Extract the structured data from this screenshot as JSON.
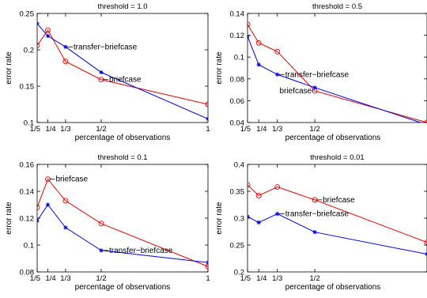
{
  "chart_data": [
    {
      "type": "line",
      "title": "threshold = 1.0",
      "xlabel": "percentage of observations",
      "ylabel": "error rate",
      "x": [
        0.2,
        0.25,
        0.333,
        0.5,
        1.0
      ],
      "xticks": [
        0.2,
        0.25,
        0.333,
        0.5,
        1.0
      ],
      "xtick_labels": [
        "1/5",
        "1/4",
        "1/3",
        "1/2",
        "1"
      ],
      "xlim": [
        0.2,
        1.0
      ],
      "ylim": [
        0.1,
        0.25
      ],
      "yticks": [
        0.1,
        0.15,
        0.2,
        0.25
      ],
      "ytick_labels": [
        "0.1",
        "0.15",
        "0.2",
        "0.25"
      ],
      "series": [
        {
          "name": "briefcase",
          "color": "#e60000",
          "marker": "circle",
          "values": [
            0.206,
            0.227,
            0.184,
            0.159,
            0.125
          ]
        },
        {
          "name": "transfer−briefcase",
          "color": "#0000e6",
          "marker": "star",
          "values": [
            0.236,
            0.219,
            0.204,
            0.169,
            0.105
          ]
        }
      ],
      "annotations": [
        {
          "text": "transfer−briefcase",
          "x": 0.333,
          "y": 0.204
        },
        {
          "text": "briefcase",
          "x": 0.5,
          "y": 0.159
        }
      ]
    },
    {
      "type": "line",
      "title": "threshold = 0.5",
      "xlabel": "percentage of observations",
      "ylabel": "error rate",
      "x": [
        0.2,
        0.25,
        0.333,
        0.5,
        1.0
      ],
      "xticks": [
        0.2,
        0.25,
        0.333,
        0.5
      ],
      "xtick_labels": [
        "1/5",
        "1/4",
        "1/3",
        "1/2"
      ],
      "xlim": [
        0.2,
        1.0
      ],
      "ylim": [
        0.04,
        0.14
      ],
      "yticks": [
        0.04,
        0.06,
        0.08,
        0.1,
        0.12,
        0.14
      ],
      "ytick_labels": [
        "0.04",
        "0.06",
        "0.08",
        "0.1",
        "0.12",
        "0.14"
      ],
      "series": [
        {
          "name": "briefcase",
          "color": "#e60000",
          "marker": "circle",
          "values": [
            0.13,
            0.113,
            0.105,
            0.069,
            0.04
          ]
        },
        {
          "name": "transfer−briefcase",
          "color": "#0000e6",
          "marker": "star",
          "values": [
            0.119,
            0.093,
            0.084,
            0.072,
            0.038
          ]
        }
      ],
      "annotations": [
        {
          "text": "transfer−briefcase",
          "x": 0.333,
          "y": 0.084
        },
        {
          "text": "briefcase",
          "x": 0.5,
          "y": 0.069
        }
      ]
    },
    {
      "type": "line",
      "title": "threshold = 0.1",
      "xlabel": "percentage of observations",
      "ylabel": "error rate",
      "x": [
        0.2,
        0.25,
        0.333,
        0.5,
        1.0
      ],
      "xticks": [
        0.2,
        0.25,
        0.333,
        0.5,
        1.0
      ],
      "xtick_labels": [
        "1/5",
        "1/4",
        "1/3",
        "1/2",
        "1"
      ],
      "xlim": [
        0.2,
        1.0
      ],
      "ylim": [
        0.08,
        0.16
      ],
      "yticks": [
        0.08,
        0.1,
        0.12,
        0.14,
        0.16
      ],
      "ytick_labels": [
        "0.08",
        "0.1",
        "0.12",
        "0.14",
        "0.16"
      ],
      "series": [
        {
          "name": "briefcase",
          "color": "#e60000",
          "marker": "circle",
          "values": [
            0.128,
            0.149,
            0.133,
            0.116,
            0.084
          ]
        },
        {
          "name": "transfer−briefcase",
          "color": "#0000e6",
          "marker": "star",
          "values": [
            0.118,
            0.13,
            0.113,
            0.096,
            0.087
          ]
        }
      ],
      "annotations": [
        {
          "text": "briefcase",
          "x": 0.25,
          "y": 0.149
        },
        {
          "text": "transfer−briefcase",
          "x": 0.5,
          "y": 0.096
        }
      ]
    },
    {
      "type": "line",
      "title": "threshold = 0.01",
      "xlabel": "percentage of observations",
      "ylabel": "error rate",
      "x": [
        0.2,
        0.25,
        0.333,
        0.5,
        1.0
      ],
      "xticks": [
        0.2,
        0.25,
        0.333,
        0.5
      ],
      "xtick_labels": [
        "1/5",
        "1/4",
        "1/3",
        "1/2"
      ],
      "xlim": [
        0.2,
        1.0
      ],
      "ylim": [
        0.2,
        0.4
      ],
      "yticks": [
        0.2,
        0.25,
        0.3,
        0.35,
        0.4
      ],
      "ytick_labels": [
        "0.2",
        "0.25",
        "0.3",
        "0.35",
        "0.4"
      ],
      "series": [
        {
          "name": "briefcase",
          "color": "#e60000",
          "marker": "circle",
          "values": [
            0.362,
            0.342,
            0.358,
            0.334,
            0.255
          ]
        },
        {
          "name": "transfer−briefcase",
          "color": "#0000e6",
          "marker": "star",
          "values": [
            0.303,
            0.292,
            0.308,
            0.274,
            0.233
          ]
        }
      ],
      "annotations": [
        {
          "text": "briefcase",
          "x": 0.5,
          "y": 0.334
        },
        {
          "text": "transfer−briefcase",
          "x": 0.333,
          "y": 0.308
        }
      ]
    }
  ]
}
